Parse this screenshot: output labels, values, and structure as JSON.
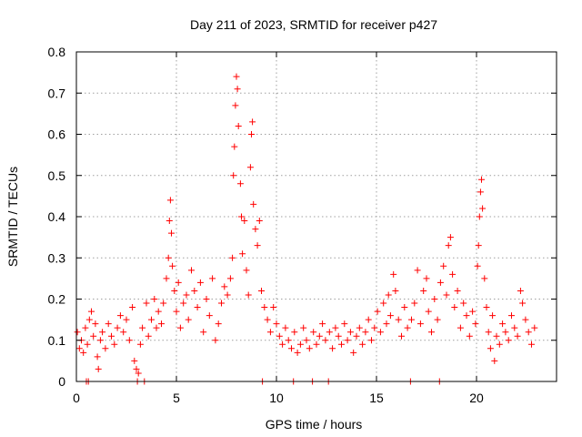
{
  "chart_data": {
    "type": "scatter",
    "title": "Day 211 of 2023, SRMTID for receiver p427",
    "xlabel": "GPS time / hours",
    "ylabel": "SRMTID / TECUs",
    "xlim": [
      0,
      24
    ],
    "ylim": [
      0,
      0.8
    ],
    "xticks": [
      0,
      5,
      10,
      15,
      20
    ],
    "xtick_labels": [
      "0",
      "5",
      "10",
      "15",
      "20"
    ],
    "yticks": [
      0,
      0.1,
      0.2,
      0.3,
      0.4,
      0.5,
      0.6,
      0.7,
      0.8
    ],
    "ytick_labels": [
      "0",
      "0.1",
      "0.2",
      "0.3",
      "0.4",
      "0.5",
      "0.6",
      "0.7",
      "0.8"
    ],
    "grid": true,
    "marker": "+",
    "color": "#ff0000",
    "series": [
      {
        "name": "SRMTID",
        "points": [
          [
            0.05,
            0.12
          ],
          [
            0.15,
            0.08
          ],
          [
            0.25,
            0.1
          ],
          [
            0.35,
            0.07
          ],
          [
            0.45,
            0.13
          ],
          [
            0.5,
            0.0
          ],
          [
            0.55,
            0.09
          ],
          [
            0.6,
            0.0
          ],
          [
            0.65,
            0.15
          ],
          [
            0.75,
            0.17
          ],
          [
            0.85,
            0.11
          ],
          [
            0.95,
            0.14
          ],
          [
            1.05,
            0.06
          ],
          [
            1.1,
            0.03
          ],
          [
            1.2,
            0.1
          ],
          [
            1.3,
            0.12
          ],
          [
            1.45,
            0.08
          ],
          [
            1.6,
            0.14
          ],
          [
            1.75,
            0.11
          ],
          [
            1.9,
            0.09
          ],
          [
            2.05,
            0.13
          ],
          [
            2.2,
            0.16
          ],
          [
            2.35,
            0.12
          ],
          [
            2.5,
            0.15
          ],
          [
            2.65,
            0.1
          ],
          [
            2.8,
            0.18
          ],
          [
            2.9,
            0.05
          ],
          [
            3.0,
            0.03
          ],
          [
            3.05,
            0.0
          ],
          [
            3.1,
            0.02
          ],
          [
            3.2,
            0.09
          ],
          [
            3.3,
            0.13
          ],
          [
            3.4,
            0.0
          ],
          [
            3.5,
            0.19
          ],
          [
            3.6,
            0.11
          ],
          [
            3.75,
            0.15
          ],
          [
            3.9,
            0.2
          ],
          [
            4.0,
            0.13
          ],
          [
            4.1,
            0.17
          ],
          [
            4.25,
            0.14
          ],
          [
            4.35,
            0.19
          ],
          [
            4.5,
            0.25
          ],
          [
            4.6,
            0.3
          ],
          [
            4.65,
            0.39
          ],
          [
            4.7,
            0.44
          ],
          [
            4.75,
            0.36
          ],
          [
            4.8,
            0.28
          ],
          [
            4.9,
            0.22
          ],
          [
            5.0,
            0.17
          ],
          [
            5.1,
            0.24
          ],
          [
            5.2,
            0.13
          ],
          [
            5.35,
            0.19
          ],
          [
            5.5,
            0.21
          ],
          [
            5.6,
            0.15
          ],
          [
            5.75,
            0.27
          ],
          [
            5.9,
            0.22
          ],
          [
            6.05,
            0.18
          ],
          [
            6.2,
            0.24
          ],
          [
            6.35,
            0.12
          ],
          [
            6.5,
            0.2
          ],
          [
            6.65,
            0.16
          ],
          [
            6.8,
            0.25
          ],
          [
            6.95,
            0.1
          ],
          [
            7.1,
            0.14
          ],
          [
            7.25,
            0.19
          ],
          [
            7.4,
            0.23
          ],
          [
            7.55,
            0.21
          ],
          [
            7.7,
            0.25
          ],
          [
            7.8,
            0.3
          ],
          [
            7.85,
            0.5
          ],
          [
            7.9,
            0.57
          ],
          [
            7.95,
            0.67
          ],
          [
            8.0,
            0.74
          ],
          [
            8.05,
            0.71
          ],
          [
            8.1,
            0.62
          ],
          [
            8.2,
            0.48
          ],
          [
            8.25,
            0.4
          ],
          [
            8.3,
            0.31
          ],
          [
            8.4,
            0.39
          ],
          [
            8.5,
            0.27
          ],
          [
            8.6,
            0.21
          ],
          [
            8.7,
            0.52
          ],
          [
            8.75,
            0.6
          ],
          [
            8.8,
            0.63
          ],
          [
            8.85,
            0.43
          ],
          [
            8.95,
            0.37
          ],
          [
            9.05,
            0.33
          ],
          [
            9.15,
            0.39
          ],
          [
            9.25,
            0.22
          ],
          [
            9.3,
            0.0
          ],
          [
            9.4,
            0.18
          ],
          [
            9.55,
            0.15
          ],
          [
            9.7,
            0.12
          ],
          [
            9.85,
            0.18
          ],
          [
            10.0,
            0.14
          ],
          [
            10.15,
            0.11
          ],
          [
            10.3,
            0.09
          ],
          [
            10.45,
            0.13
          ],
          [
            10.6,
            0.1
          ],
          [
            10.75,
            0.08
          ],
          [
            10.85,
            0.0
          ],
          [
            10.9,
            0.12
          ],
          [
            11.05,
            0.07
          ],
          [
            11.2,
            0.09
          ],
          [
            11.35,
            0.13
          ],
          [
            11.5,
            0.1
          ],
          [
            11.65,
            0.08
          ],
          [
            11.8,
            0.0
          ],
          [
            11.85,
            0.12
          ],
          [
            12.0,
            0.09
          ],
          [
            12.15,
            0.11
          ],
          [
            12.3,
            0.14
          ],
          [
            12.45,
            0.1
          ],
          [
            12.6,
            0.0
          ],
          [
            12.65,
            0.12
          ],
          [
            12.8,
            0.08
          ],
          [
            12.95,
            0.13
          ],
          [
            13.1,
            0.11
          ],
          [
            13.25,
            0.09
          ],
          [
            13.4,
            0.14
          ],
          [
            13.55,
            0.1
          ],
          [
            13.7,
            0.12
          ],
          [
            13.85,
            0.07
          ],
          [
            14.0,
            0.11
          ],
          [
            14.15,
            0.13
          ],
          [
            14.3,
            0.09
          ],
          [
            14.45,
            0.12
          ],
          [
            14.6,
            0.15
          ],
          [
            14.75,
            0.1
          ],
          [
            14.9,
            0.13
          ],
          [
            15.05,
            0.17
          ],
          [
            15.2,
            0.12
          ],
          [
            15.35,
            0.19
          ],
          [
            15.5,
            0.14
          ],
          [
            15.6,
            0.21
          ],
          [
            15.7,
            0.16
          ],
          [
            15.85,
            0.26
          ],
          [
            15.95,
            0.22
          ],
          [
            16.1,
            0.15
          ],
          [
            16.25,
            0.11
          ],
          [
            16.4,
            0.18
          ],
          [
            16.55,
            0.13
          ],
          [
            16.7,
            0.0
          ],
          [
            16.75,
            0.15
          ],
          [
            16.9,
            0.19
          ],
          [
            17.05,
            0.27
          ],
          [
            17.2,
            0.14
          ],
          [
            17.35,
            0.22
          ],
          [
            17.5,
            0.25
          ],
          [
            17.6,
            0.17
          ],
          [
            17.75,
            0.12
          ],
          [
            17.9,
            0.2
          ],
          [
            18.05,
            0.15
          ],
          [
            18.15,
            0.0
          ],
          [
            18.2,
            0.24
          ],
          [
            18.35,
            0.28
          ],
          [
            18.5,
            0.21
          ],
          [
            18.6,
            0.33
          ],
          [
            18.7,
            0.35
          ],
          [
            18.8,
            0.26
          ],
          [
            18.9,
            0.18
          ],
          [
            19.05,
            0.22
          ],
          [
            19.2,
            0.13
          ],
          [
            19.35,
            0.19
          ],
          [
            19.5,
            0.16
          ],
          [
            19.65,
            0.11
          ],
          [
            19.8,
            0.17
          ],
          [
            19.95,
            0.14
          ],
          [
            20.05,
            0.28
          ],
          [
            20.1,
            0.33
          ],
          [
            20.15,
            0.4
          ],
          [
            20.2,
            0.46
          ],
          [
            20.25,
            0.49
          ],
          [
            20.3,
            0.42
          ],
          [
            20.4,
            0.25
          ],
          [
            20.5,
            0.18
          ],
          [
            20.6,
            0.12
          ],
          [
            20.7,
            0.08
          ],
          [
            20.8,
            0.16
          ],
          [
            20.9,
            0.05
          ],
          [
            21.0,
            0.11
          ],
          [
            21.15,
            0.09
          ],
          [
            21.3,
            0.14
          ],
          [
            21.45,
            0.12
          ],
          [
            21.6,
            0.1
          ],
          [
            21.75,
            0.16
          ],
          [
            21.9,
            0.13
          ],
          [
            22.05,
            0.11
          ],
          [
            22.2,
            0.22
          ],
          [
            22.3,
            0.19
          ],
          [
            22.45,
            0.15
          ],
          [
            22.6,
            0.12
          ],
          [
            22.75,
            0.09
          ],
          [
            22.9,
            0.13
          ]
        ]
      }
    ]
  }
}
